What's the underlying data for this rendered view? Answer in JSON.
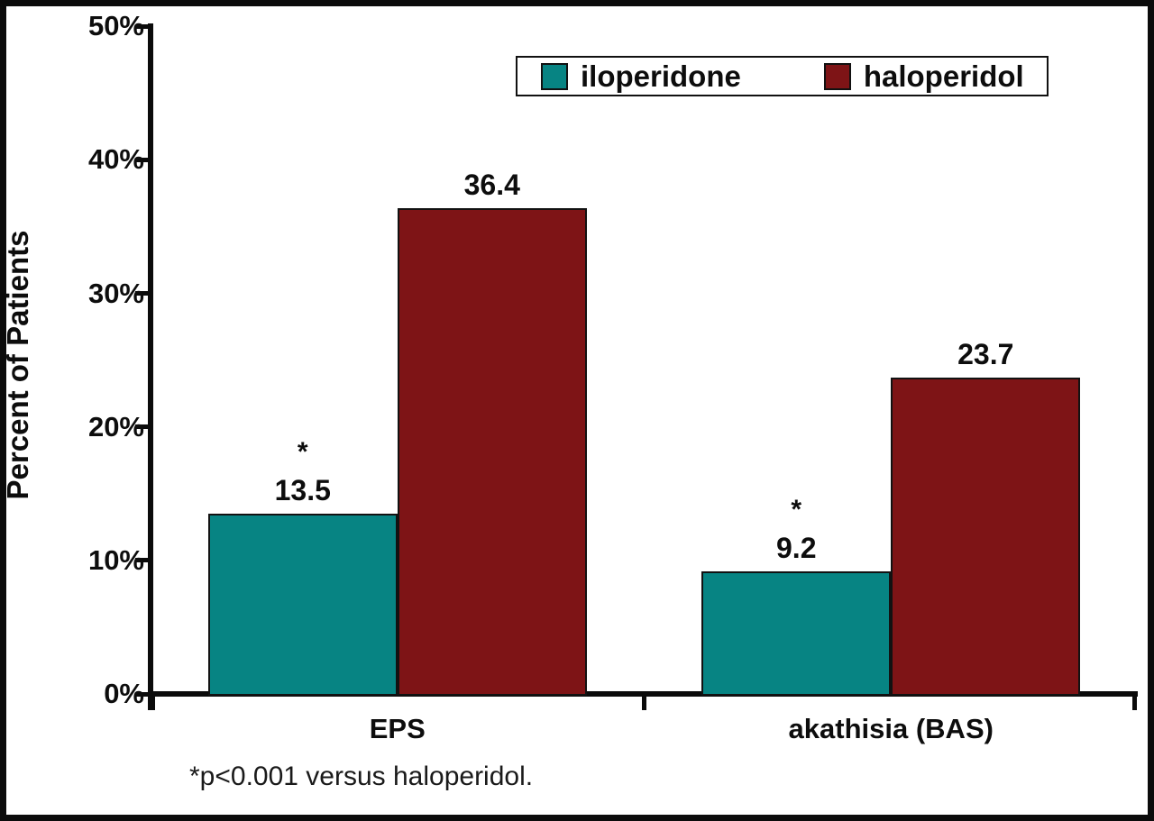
{
  "chart_data": {
    "type": "bar",
    "title": "",
    "categories": [
      "EPS",
      "akathisia (BAS)"
    ],
    "series": [
      {
        "name": "iloperidone",
        "color": "#078483",
        "values": [
          13.5,
          9.2
        ],
        "significance": [
          "*",
          "*"
        ]
      },
      {
        "name": "haloperidol",
        "color": "#7E1416",
        "values": [
          36.4,
          23.7
        ],
        "significance": [
          "",
          ""
        ]
      }
    ],
    "ylabel": "Percent of Patients",
    "ylim": [
      0,
      50
    ],
    "yticks": [
      "0%",
      "10%",
      "20%",
      "30%",
      "40%",
      "50%"
    ],
    "ytick_values": [
      0,
      10,
      20,
      30,
      40,
      50
    ],
    "grid": false,
    "legend_position": "top",
    "footnote": "*p<0.001 versus haloperidol.",
    "axis_color": "#0b0b0b"
  }
}
